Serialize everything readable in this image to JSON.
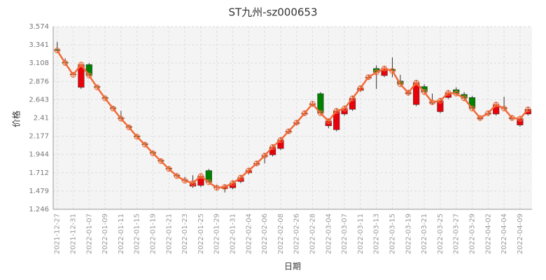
{
  "chart_data": {
    "type": "candlestick",
    "title": "ST九州-sz000653",
    "x_label": "日期",
    "y_label": "价格",
    "categories": [
      "2021-12-27",
      null,
      "2021-12-31",
      null,
      "2022-01-07",
      null,
      "2022-01-09",
      null,
      "2022-01-11",
      null,
      "2022-01-15",
      null,
      "2022-01-19",
      null,
      "2022-01-21",
      null,
      "2022-01-23",
      null,
      "2022-01-25",
      null,
      "2022-01-29",
      null,
      "2022-01-31",
      null,
      "2022-02-04",
      null,
      "2022-02-06",
      null,
      "2022-02-08",
      null,
      "2022-02-26",
      null,
      "2022-02-28",
      null,
      "2022-03-04",
      null,
      "2022-03-07",
      null,
      "2022-03-11",
      null,
      "2022-03-13",
      null,
      "2022-03-15",
      null,
      "2022-03-19",
      null,
      "2022-03-21",
      null,
      "2022-03-25",
      null,
      "2022-03-27",
      null,
      "2022-03-29",
      null,
      "2022-04-02",
      null,
      "2022-04-04",
      null,
      "2022-04-09",
      null
    ],
    "open": [
      3.28,
      3.12,
      2.97,
      2.8,
      3.09,
      2.81,
      2.67,
      2.54,
      2.41,
      2.3,
      2.18,
      2.08,
      1.97,
      1.87,
      1.77,
      1.68,
      1.62,
      1.54,
      1.55,
      1.74,
      1.53,
      1.51,
      1.52,
      1.6,
      1.71,
      1.82,
      1.92,
      1.94,
      2.02,
      2.23,
      2.34,
      2.46,
      2.58,
      2.72,
      2.31,
      2.26,
      2.46,
      2.52,
      2.76,
      2.92,
      3.04,
      2.95,
      3.03,
      2.88,
      2.72,
      2.58,
      2.81,
      2.6,
      2.49,
      2.67,
      2.77,
      2.71,
      2.67,
      2.4,
      2.46,
      2.46,
      2.54,
      2.4,
      2.32,
      2.46
    ],
    "close": [
      3.27,
      3.11,
      2.96,
      3.09,
      2.95,
      2.8,
      2.66,
      2.53,
      2.4,
      2.29,
      2.17,
      2.07,
      1.96,
      1.86,
      1.76,
      1.67,
      1.61,
      1.58,
      1.67,
      1.59,
      1.52,
      1.53,
      1.58,
      1.65,
      1.74,
      1.83,
      1.93,
      2.04,
      2.13,
      2.24,
      2.35,
      2.47,
      2.59,
      2.47,
      2.37,
      2.5,
      2.53,
      2.66,
      2.79,
      2.93,
      2.99,
      3.04,
      3.01,
      2.84,
      2.73,
      2.86,
      2.74,
      2.61,
      2.63,
      2.73,
      2.72,
      2.66,
      2.53,
      2.41,
      2.47,
      2.58,
      2.53,
      2.41,
      2.4,
      2.52
    ],
    "high": [
      3.38,
      3.17,
      2.99,
      3.11,
      3.11,
      2.83,
      2.69,
      2.56,
      2.5,
      2.32,
      2.2,
      2.1,
      1.99,
      1.89,
      1.79,
      1.7,
      1.66,
      1.68,
      1.69,
      1.76,
      1.56,
      1.56,
      1.61,
      1.68,
      1.77,
      1.86,
      1.96,
      2.07,
      2.16,
      2.27,
      2.38,
      2.5,
      2.62,
      2.74,
      2.4,
      2.53,
      2.57,
      2.69,
      2.82,
      2.96,
      3.08,
      3.07,
      3.18,
      2.96,
      2.77,
      2.89,
      2.84,
      2.72,
      2.66,
      2.76,
      2.8,
      2.74,
      2.69,
      2.43,
      2.5,
      2.61,
      2.68,
      2.44,
      2.42,
      2.55
    ],
    "low": [
      3.25,
      3.08,
      2.94,
      2.78,
      2.93,
      2.78,
      2.64,
      2.51,
      2.38,
      2.27,
      2.15,
      2.05,
      1.94,
      1.84,
      1.74,
      1.65,
      1.59,
      1.52,
      1.53,
      1.57,
      1.49,
      1.46,
      1.5,
      1.58,
      1.69,
      1.8,
      1.83,
      1.92,
      2.0,
      2.21,
      2.32,
      2.44,
      2.56,
      2.45,
      2.28,
      2.24,
      2.44,
      2.5,
      2.74,
      2.9,
      2.78,
      2.93,
      2.93,
      2.82,
      2.7,
      2.56,
      2.72,
      2.58,
      2.47,
      2.65,
      2.7,
      2.63,
      2.51,
      2.38,
      2.44,
      2.44,
      2.51,
      2.38,
      2.3,
      2.44
    ],
    "up_color": "#e8000b",
    "down_color": "#008000",
    "line_color": "#f26b38",
    "ylim": [
      1.246,
      3.574
    ],
    "yticks": [
      1.246,
      1.479,
      1.712,
      1.944,
      2.177,
      2.41,
      2.643,
      2.876,
      3.108,
      3.341,
      3.574
    ],
    "grid": true
  }
}
